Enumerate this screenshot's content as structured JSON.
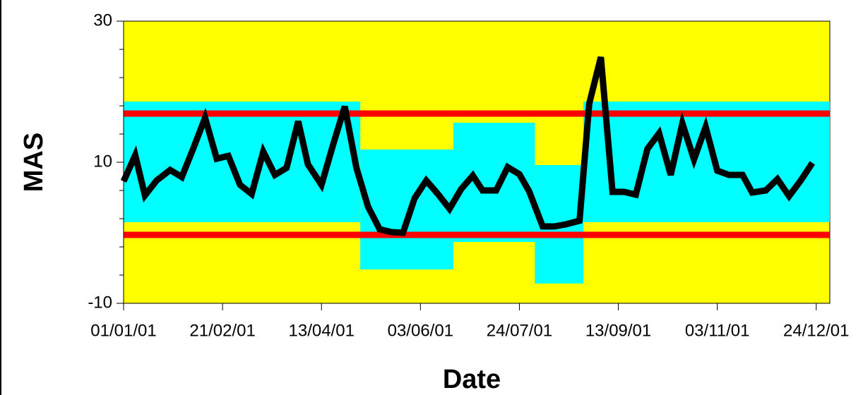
{
  "chart_data": {
    "type": "line",
    "x_label": "Date",
    "y_label": "MAS",
    "xlim": [
      0,
      364
    ],
    "ylim": [
      -10,
      30
    ],
    "xticks": [
      {
        "value": 0,
        "label": "01/01/01"
      },
      {
        "value": 51,
        "label": "21/02/01"
      },
      {
        "value": 102,
        "label": "13/04/01"
      },
      {
        "value": 153,
        "label": "03/06/01"
      },
      {
        "value": 204,
        "label": "24/07/01"
      },
      {
        "value": 255,
        "label": "13/09/01"
      },
      {
        "value": 306,
        "label": "03/11/01"
      },
      {
        "value": 357,
        "label": "24/12/01"
      }
    ],
    "yticks": [
      -10,
      10,
      30
    ],
    "yminorticks": [
      -6,
      -2,
      2,
      6,
      14,
      18,
      22,
      26
    ],
    "background": "#ffff00",
    "band_color": "#00ffff",
    "bands": [
      {
        "x": [
          0,
          122
        ],
        "y": [
          1.5,
          18.6
        ]
      },
      {
        "x": [
          122,
          170
        ],
        "y": [
          -5.2,
          11.8
        ]
      },
      {
        "x": [
          170,
          212
        ],
        "y": [
          -1.3,
          15.6
        ]
      },
      {
        "x": [
          212,
          237
        ],
        "y": [
          -7.2,
          9.6
        ]
      },
      {
        "x": [
          237,
          364
        ],
        "y": [
          1.5,
          18.6
        ]
      }
    ],
    "hline_color": "#ff0000",
    "hlines": [
      16.9,
      -0.3
    ],
    "series": [
      {
        "color": "#000000",
        "x": [
          0,
          6,
          11,
          17,
          24,
          30,
          36,
          42,
          48,
          54,
          60,
          66,
          72,
          78,
          84,
          90,
          95,
          102,
          108,
          114,
          120,
          126,
          132,
          138,
          144,
          150,
          156,
          162,
          168,
          174,
          180,
          185,
          192,
          198,
          204,
          209,
          216,
          222,
          228,
          235,
          240,
          246,
          252,
          258,
          264,
          270,
          276,
          282,
          288,
          294,
          300,
          306,
          312,
          319,
          324,
          331,
          337,
          343,
          349,
          355
        ],
        "values": [
          7.3,
          11.0,
          5.3,
          7.4,
          8.9,
          7.9,
          12.0,
          16.3,
          10.5,
          10.9,
          6.8,
          5.5,
          11.5,
          8.2,
          9.2,
          15.8,
          9.7,
          6.8,
          12.5,
          17.9,
          9.2,
          3.7,
          0.5,
          0.1,
          0.0,
          4.9,
          7.4,
          5.5,
          3.4,
          6.2,
          8.1,
          6.0,
          6.0,
          9.3,
          8.3,
          5.9,
          0.9,
          0.9,
          1.2,
          1.7,
          18.3,
          24.9,
          5.8,
          5.8,
          5.4,
          11.9,
          14.1,
          8.2,
          15.5,
          10.4,
          15.0,
          8.8,
          8.2,
          8.2,
          5.7,
          6.0,
          7.6,
          5.2,
          7.4,
          9.9
        ]
      }
    ]
  }
}
